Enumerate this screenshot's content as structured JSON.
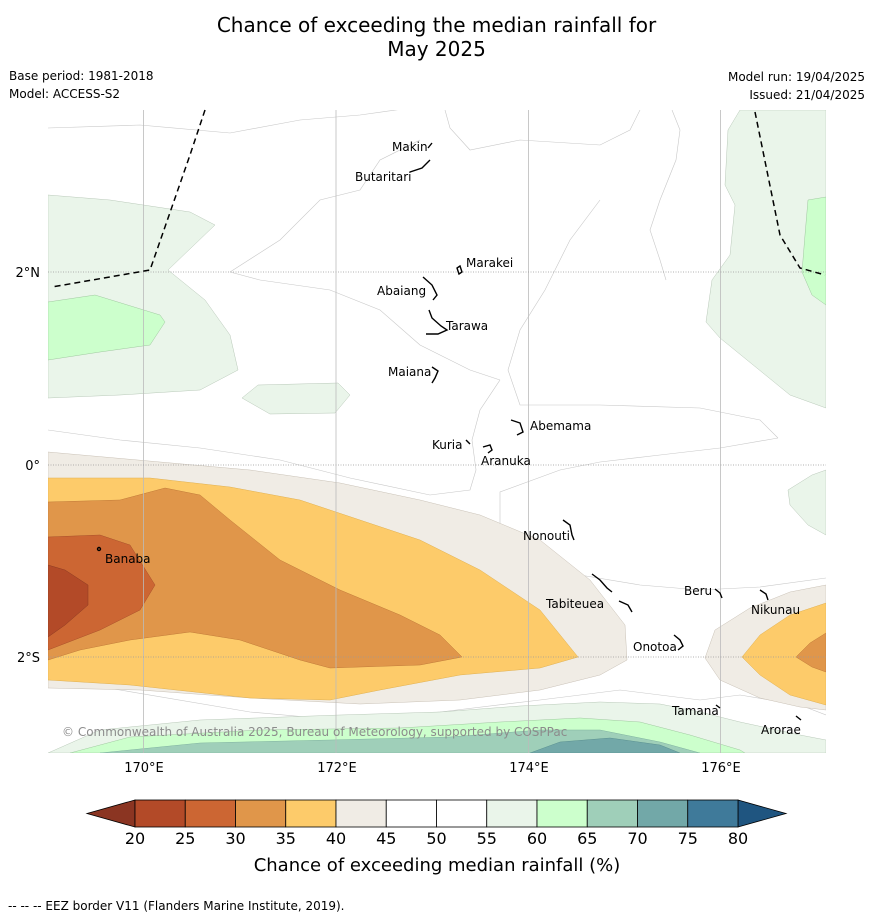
{
  "title_line1": "Chance of exceeding the median rainfall for",
  "title_line2": "May 2025",
  "base_period": "Base period: 1981-2018",
  "model": "Model: ACCESS-S2",
  "model_run": "Model run: 19/04/2025",
  "issued": "Issued: 21/04/2025",
  "copyright": "© Commonwealth of Australia 2025, Bureau of Meteorology, supported by COSPPac",
  "lon_labels": [
    "170°E",
    "172°E",
    "174°E",
    "176°E"
  ],
  "lat_labels": [
    "2°N",
    "0°",
    "2°S"
  ],
  "islands": [
    "Makin",
    "Butaritari",
    "Marakei",
    "Abaiang",
    "Tarawa",
    "Maiana",
    "Abemama",
    "Kuria",
    "Aranuka",
    "Nonouti",
    "Banaba",
    "Tabiteuea",
    "Beru",
    "Nikunau",
    "Onotoa",
    "Tamana",
    "Arorae"
  ],
  "colorbar": {
    "ticks": [
      "20",
      "25",
      "30",
      "35",
      "40",
      "45",
      "50",
      "55",
      "60",
      "65",
      "70",
      "75",
      "80"
    ],
    "colors": [
      "#b34a28",
      "#cc6633",
      "#e0964a",
      "#fdcb6a",
      "#f0ece5",
      "#ffffff",
      "#ffffff",
      "#eaf5ea",
      "#ccffcc",
      "#9fcfb9",
      "#72a8a8",
      "#3f7a9a"
    ],
    "low_color": "#8b3522",
    "high_color": "#1f5580",
    "label": "Chance of exceeding median rainfall (%)"
  },
  "footer": "--  --  -- EEZ border V11 (Flanders Marine Institute, 2019)."
}
